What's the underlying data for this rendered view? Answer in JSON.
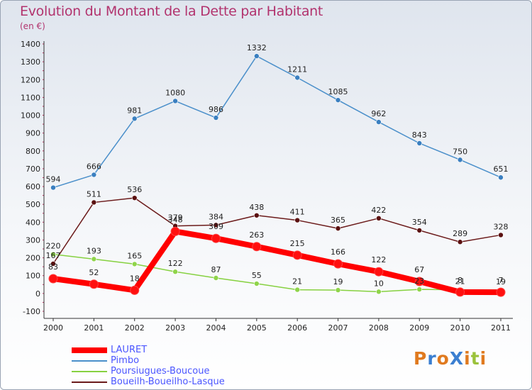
{
  "title": "Evolution du Montant de la Dette par Habitant",
  "subtitle": "(en €)",
  "logo": {
    "text": "ProXiti",
    "colors": [
      "#e07a1f",
      "#3b7fd1",
      "#e07a1f",
      "#3b7fd1",
      "#e07a1f",
      "#9bc23b",
      "#e07a1f"
    ]
  },
  "chart_data": {
    "type": "line",
    "title": "Evolution du Montant de la Dette par Habitant",
    "subtitle": "(en €)",
    "xlabel": "",
    "ylabel": "",
    "ylim": [
      -100,
      1400
    ],
    "y_ticks": [
      -100,
      0,
      100,
      200,
      300,
      400,
      500,
      600,
      700,
      800,
      900,
      1000,
      1100,
      1200,
      1300,
      1400
    ],
    "x": [
      "2000",
      "2001",
      "2002",
      "2003",
      "2004",
      "2005",
      "2006",
      "2007",
      "2008",
      "2009",
      "2010",
      "2011"
    ],
    "grid": false,
    "legend_position": "bottom-left",
    "series": [
      {
        "name": "LAURET",
        "color": "#ff0000",
        "values": [
          83,
          52,
          18,
          348,
          309,
          263,
          215,
          166,
          122,
          67,
          8,
          7
        ]
      },
      {
        "name": "Pimbo",
        "color": "#4a8fca",
        "values": [
          594,
          666,
          981,
          1080,
          986,
          1332,
          1211,
          1085,
          962,
          843,
          750,
          651
        ]
      },
      {
        "name": "Poursiugues-Boucoue",
        "color": "#86d140",
        "values": [
          220,
          193,
          165,
          122,
          87,
          55,
          21,
          19,
          10,
          23,
          21,
          19
        ]
      },
      {
        "name": "Boueilh-Boueilho-Lasque",
        "color": "#6b1a1a",
        "values": [
          167,
          511,
          536,
          379,
          384,
          438,
          411,
          365,
          422,
          354,
          289,
          328
        ]
      }
    ],
    "data_labels": [
      [
        "83",
        "52",
        "18",
        "348",
        "309",
        "263",
        "215",
        "166",
        "122",
        "67",
        "8",
        "7"
      ],
      [
        "594",
        "666",
        "981",
        "1080",
        "986",
        "1332",
        "1211",
        "1085",
        "962",
        "843",
        "750",
        "651"
      ],
      [
        "220",
        "193",
        "165",
        "122",
        "87",
        "55",
        "21",
        "19",
        "10",
        "23",
        "21",
        "19"
      ],
      [
        "167",
        "511",
        "536",
        "379",
        "384",
        "438",
        "411",
        "365",
        "422",
        "354",
        "289",
        "328"
      ]
    ]
  }
}
